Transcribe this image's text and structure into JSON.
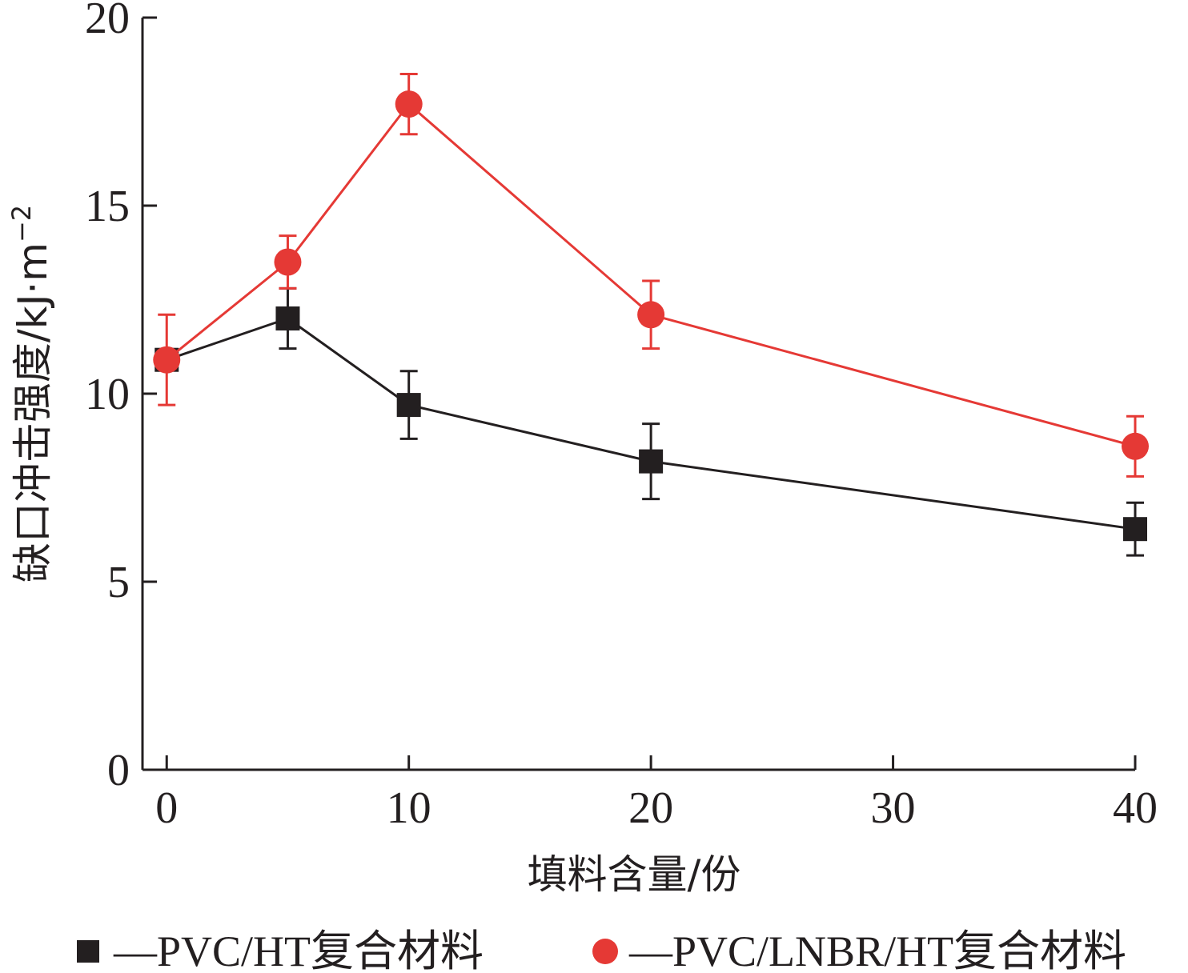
{
  "chart_data": {
    "type": "line",
    "xlabel": "填料含量/份",
    "ylabel": "缺口冲击强度/kJ·m",
    "ylabel_sup": "−2",
    "xlim": [
      -1,
      40
    ],
    "ylim": [
      0,
      20
    ],
    "xticks": [
      0,
      10,
      20,
      30,
      40
    ],
    "yticks": [
      0,
      5,
      10,
      15,
      20
    ],
    "grid": false,
    "legend_position": "bottom",
    "series": [
      {
        "name": "—PVC/HT复合材料",
        "marker": "square",
        "color": "#231f20",
        "x": [
          0,
          5,
          10,
          20,
          40
        ],
        "y": [
          10.9,
          12.0,
          9.7,
          8.2,
          6.4
        ],
        "error": [
          0.0,
          0.8,
          0.9,
          1.0,
          0.7
        ]
      },
      {
        "name": "—PVC/LNBR/HT复合材料",
        "marker": "circle",
        "color": "#e53935",
        "x": [
          0,
          5,
          10,
          20,
          40
        ],
        "y": [
          10.9,
          13.5,
          17.7,
          12.1,
          8.6
        ],
        "error": [
          1.2,
          0.7,
          0.8,
          0.9,
          0.8
        ]
      }
    ]
  }
}
